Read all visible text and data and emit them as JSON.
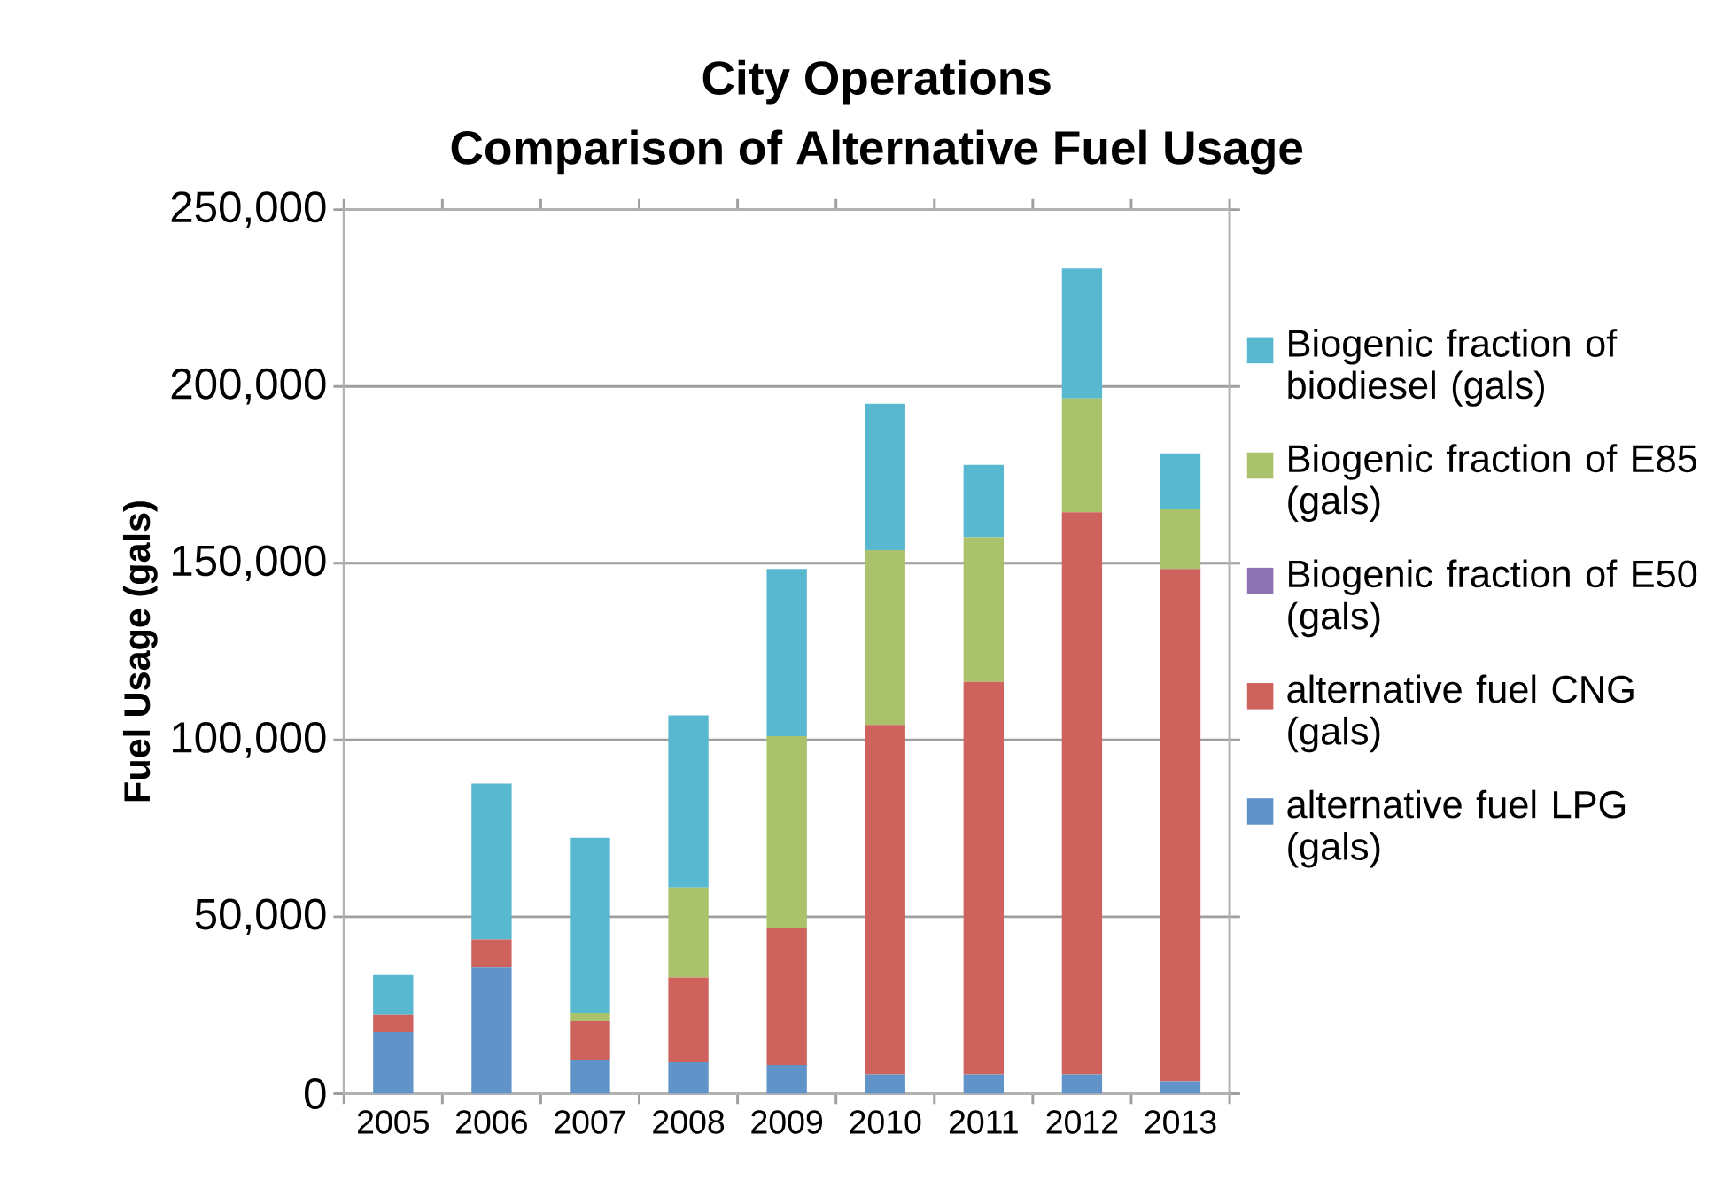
{
  "chart_data": {
    "type": "bar",
    "stacked": true,
    "title": "City Operations",
    "subtitle": "Comparison of Alternative Fuel Usage",
    "ylabel": "Fuel Usage (gals)",
    "categories": [
      "2005",
      "2006",
      "2007",
      "2008",
      "2009",
      "2010",
      "2011",
      "2012",
      "2013"
    ],
    "series": [
      {
        "name": "alternative fuel LPG (gals)",
        "color": "#6094c8",
        "values": [
          17400,
          35600,
          9400,
          8900,
          8100,
          5500,
          5500,
          5500,
          3500
        ]
      },
      {
        "name": "alternative fuel CNG (gals)",
        "color": "#cd635c",
        "values": [
          4800,
          8000,
          11200,
          23900,
          38800,
          98800,
          110900,
          158900,
          144900
        ]
      },
      {
        "name": "Biogenic fraction of E50 (gals)",
        "color": "#8e73b3",
        "values": [
          0,
          0,
          0,
          0,
          0,
          0,
          0,
          0,
          0
        ]
      },
      {
        "name": "Biogenic fraction of E85 (gals)",
        "color": "#a9c26b",
        "values": [
          0,
          0,
          2300,
          25500,
          54200,
          49400,
          40900,
          32200,
          16800
        ]
      },
      {
        "name": "Biogenic fraction of biodiesel (gals)",
        "color": "#58b8d0",
        "values": [
          11300,
          44100,
          49400,
          48700,
          47300,
          41400,
          20500,
          36700,
          15900
        ]
      }
    ],
    "ylim": [
      0,
      250000
    ],
    "yticks": [
      {
        "value": 0,
        "label": "0"
      },
      {
        "value": 50000,
        "label": "50,000"
      },
      {
        "value": 100000,
        "label": "100,000"
      },
      {
        "value": 150000,
        "label": "150,000"
      },
      {
        "value": 200000,
        "label": "200,000"
      },
      {
        "value": 250000,
        "label": "250,000"
      }
    ],
    "grid": "y",
    "legend": "right"
  }
}
